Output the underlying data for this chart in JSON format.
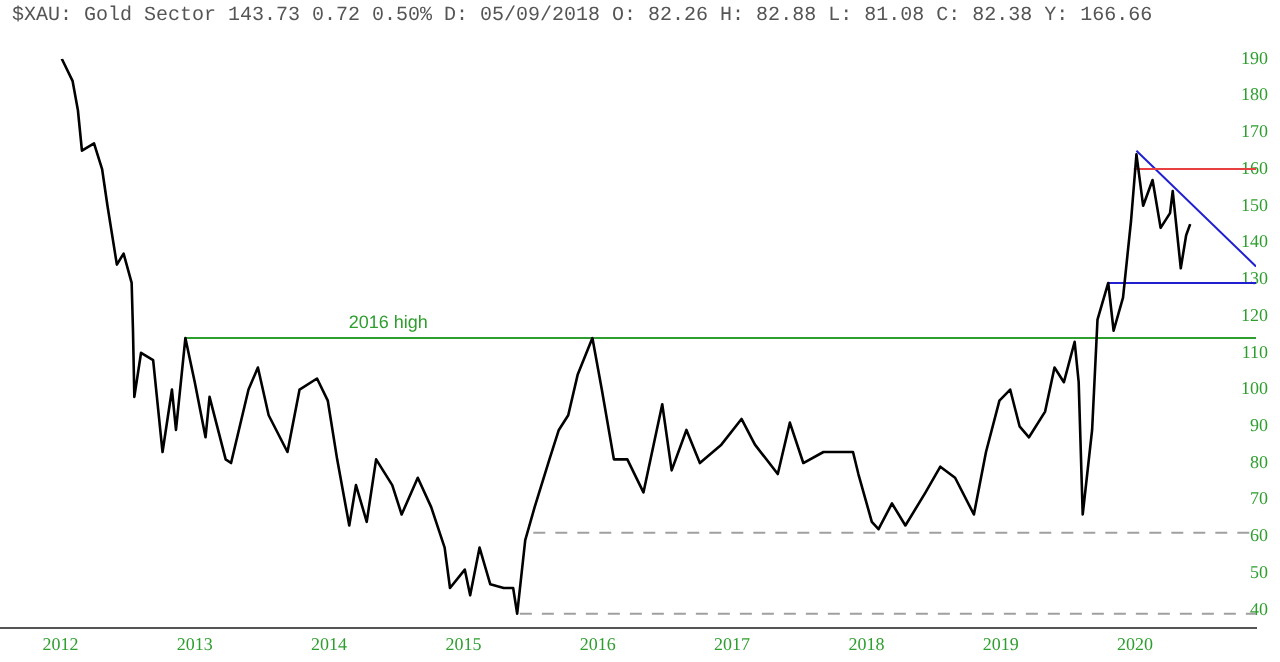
{
  "chart_data": {
    "type": "line",
    "title": "$XAU: Gold Sector 143.73 0.72 0.50% D: 05/09/2018 O: 82.26 H: 82.88 L: 81.08 C: 82.38 Y: 166.66",
    "xlim": [
      2011.55,
      2020.9
    ],
    "ylim": [
      35,
      190
    ],
    "xticks": [
      {
        "value": 2012,
        "label": "2012"
      },
      {
        "value": 2013,
        "label": "2013"
      },
      {
        "value": 2014,
        "label": "2014"
      },
      {
        "value": 2015,
        "label": "2015"
      },
      {
        "value": 2016,
        "label": "2016"
      },
      {
        "value": 2017,
        "label": "2017"
      },
      {
        "value": 2018,
        "label": "2018"
      },
      {
        "value": 2019,
        "label": "2019"
      },
      {
        "value": 2020,
        "label": "2020"
      }
    ],
    "yticks": [
      40,
      50,
      60,
      70,
      80,
      90,
      100,
      110,
      120,
      130,
      140,
      150,
      160,
      170,
      180,
      190
    ],
    "grid": false,
    "legend": false,
    "marker": "none",
    "annotations": [
      {
        "text": "2016 high",
        "x": 2014.44,
        "y": 114
      }
    ],
    "series": [
      {
        "color": "#000000",
        "x": [
          2012.01,
          2012.09,
          2012.13,
          2012.16,
          2012.25,
          2012.31,
          2012.35,
          2012.42,
          2012.47,
          2012.53,
          2012.54,
          2012.55,
          2012.6,
          2012.69,
          2012.76,
          2012.83,
          2012.86,
          2012.93,
          2013.0,
          2013.08,
          2013.11,
          2013.23,
          2013.27,
          2013.4,
          2013.47,
          2013.55,
          2013.69,
          2013.78,
          2013.91,
          2013.99,
          2014.06,
          2014.15,
          2014.2,
          2014.28,
          2014.35,
          2014.47,
          2014.54,
          2014.66,
          2014.76,
          2014.86,
          2014.9,
          2015.01,
          2015.05,
          2015.12,
          2015.2,
          2015.3,
          2015.37,
          2015.4,
          2015.46,
          2015.53,
          2015.64,
          2015.71,
          2015.78,
          2015.85,
          2015.96,
          2016.03,
          2016.12,
          2016.22,
          2016.34,
          2016.48,
          2016.55,
          2016.66,
          2016.76,
          2016.92,
          2017.07,
          2017.17,
          2017.34,
          2017.43,
          2017.53,
          2017.68,
          2017.9,
          2017.94,
          2018.04,
          2018.09,
          2018.19,
          2018.29,
          2018.44,
          2018.55,
          2018.66,
          2018.8,
          2018.89,
          2018.99,
          2019.07,
          2019.14,
          2019.21,
          2019.33,
          2019.4,
          2019.47,
          2019.55,
          2019.58,
          2019.61,
          2019.68,
          2019.72,
          2019.8,
          2019.84,
          2019.91,
          2019.97,
          2020.01,
          2020.06,
          2020.13,
          2020.19,
          2020.26,
          2020.28,
          2020.34,
          2020.38,
          2020.41
        ],
        "values": [
          190,
          184,
          176,
          165,
          167,
          160,
          150,
          134,
          137,
          129,
          116,
          98,
          110,
          108,
          83,
          100,
          89,
          114,
          102,
          87,
          98,
          81,
          80,
          100,
          106,
          93,
          83,
          100,
          103,
          97,
          81,
          63,
          74,
          64,
          81,
          74,
          66,
          76,
          68,
          57,
          46,
          51,
          44,
          57,
          47,
          46,
          46,
          39,
          59,
          68,
          81,
          89,
          93,
          104,
          114,
          100,
          81,
          81,
          72,
          96,
          78,
          89,
          80,
          85,
          92,
          85,
          77,
          91,
          80,
          83,
          83,
          77,
          64,
          62,
          69,
          63,
          72,
          79,
          76,
          66,
          83,
          97,
          100,
          90,
          87,
          94,
          106,
          102,
          113,
          102,
          66,
          89,
          119,
          129,
          116,
          125,
          146,
          164,
          150,
          157,
          144,
          148,
          154,
          133,
          142,
          145
        ]
      },
      {
        "color": "#2e9e2e",
        "x": [
          2012.93,
          2020.9
        ],
        "values": [
          114,
          114
        ]
      },
      {
        "color": "#e84040",
        "x": [
          2019.99,
          2020.9
        ],
        "values": [
          160,
          160
        ]
      },
      {
        "color": "#2020d0",
        "x": [
          2019.8,
          2020.9
        ],
        "values": [
          129,
          129
        ]
      },
      {
        "color": "#2020d0",
        "x": [
          2020.01,
          2020.9
        ],
        "values": [
          165,
          133.5
        ]
      },
      {
        "color": "#a0a0a0",
        "line_style": "dashed",
        "x": [
          2015.52,
          2020.9
        ],
        "values": [
          61,
          61
        ]
      },
      {
        "color": "#a0a0a0",
        "line_style": "dashed",
        "x": [
          2015.42,
          2020.9
        ],
        "values": [
          39,
          39
        ]
      }
    ]
  }
}
